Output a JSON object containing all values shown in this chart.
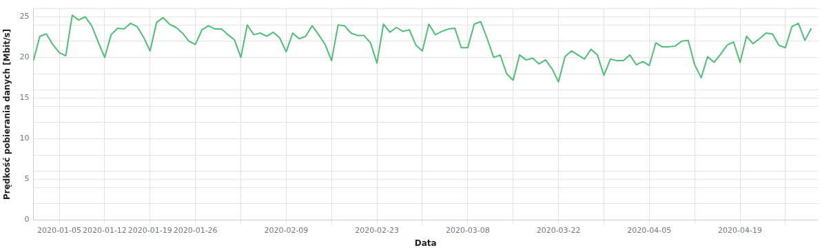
{
  "chart_data": {
    "type": "line",
    "xlabel": "Data",
    "ylabel": "Prędkość pobierania danych [Mbit/s]",
    "x": [
      "2020-01-01",
      "2020-01-02",
      "2020-01-03",
      "2020-01-04",
      "2020-01-05",
      "2020-01-06",
      "2020-01-07",
      "2020-01-08",
      "2020-01-09",
      "2020-01-10",
      "2020-01-11",
      "2020-01-12",
      "2020-01-13",
      "2020-01-14",
      "2020-01-15",
      "2020-01-16",
      "2020-01-17",
      "2020-01-18",
      "2020-01-19",
      "2020-01-20",
      "2020-01-21",
      "2020-01-22",
      "2020-01-23",
      "2020-01-24",
      "2020-01-25",
      "2020-01-26",
      "2020-01-27",
      "2020-01-28",
      "2020-01-29",
      "2020-01-30",
      "2020-01-31",
      "2020-02-01",
      "2020-02-02",
      "2020-02-03",
      "2020-02-04",
      "2020-02-05",
      "2020-02-06",
      "2020-02-07",
      "2020-02-08",
      "2020-02-09",
      "2020-02-10",
      "2020-02-11",
      "2020-02-12",
      "2020-02-13",
      "2020-02-14",
      "2020-02-15",
      "2020-02-16",
      "2020-02-17",
      "2020-02-18",
      "2020-02-19",
      "2020-02-20",
      "2020-02-21",
      "2020-02-22",
      "2020-02-23",
      "2020-02-24",
      "2020-02-25",
      "2020-02-26",
      "2020-02-27",
      "2020-02-28",
      "2020-02-29",
      "2020-03-01",
      "2020-03-02",
      "2020-03-03",
      "2020-03-04",
      "2020-03-05",
      "2020-03-06",
      "2020-03-07",
      "2020-03-08",
      "2020-03-09",
      "2020-03-10",
      "2020-03-11",
      "2020-03-12",
      "2020-03-13",
      "2020-03-14",
      "2020-03-15",
      "2020-03-16",
      "2020-03-17",
      "2020-03-18",
      "2020-03-19",
      "2020-03-20",
      "2020-03-21",
      "2020-03-22",
      "2020-03-23",
      "2020-03-24",
      "2020-03-25",
      "2020-03-26",
      "2020-03-27",
      "2020-03-28",
      "2020-03-29",
      "2020-03-30",
      "2020-03-31",
      "2020-04-01",
      "2020-04-02",
      "2020-04-03",
      "2020-04-04",
      "2020-04-05",
      "2020-04-06",
      "2020-04-07",
      "2020-04-08",
      "2020-04-09",
      "2020-04-10",
      "2020-04-11",
      "2020-04-12",
      "2020-04-13",
      "2020-04-14",
      "2020-04-15",
      "2020-04-16",
      "2020-04-17",
      "2020-04-18",
      "2020-04-19",
      "2020-04-20",
      "2020-04-21",
      "2020-04-22",
      "2020-04-23",
      "2020-04-24",
      "2020-04-25",
      "2020-04-26",
      "2020-04-27",
      "2020-04-28",
      "2020-04-29",
      "2020-04-30"
    ],
    "series": [
      {
        "color": "#4dbf74",
        "values": [
          19.6,
          22.6,
          22.9,
          21.6,
          20.6,
          20.2,
          25.2,
          24.6,
          25.0,
          23.9,
          21.9,
          20.0,
          22.8,
          23.6,
          23.5,
          24.2,
          23.8,
          22.5,
          20.8,
          24.3,
          24.9,
          24.1,
          23.7,
          23.0,
          22.0,
          21.6,
          23.4,
          23.9,
          23.5,
          23.5,
          22.8,
          22.2,
          20.0,
          24.0,
          22.8,
          23.0,
          22.6,
          23.1,
          22.4,
          20.7,
          23.0,
          22.3,
          22.6,
          23.9,
          22.8,
          21.6,
          19.6,
          24.0,
          23.9,
          23.0,
          22.7,
          22.7,
          21.8,
          19.3,
          24.1,
          23.1,
          23.7,
          23.2,
          23.4,
          21.5,
          20.8,
          24.1,
          22.8,
          23.2,
          23.5,
          23.6,
          21.2,
          21.2,
          24.1,
          24.4,
          22.3,
          20.0,
          20.3,
          18.0,
          17.2,
          20.3,
          19.7,
          19.9,
          19.2,
          19.7,
          18.6,
          17.0,
          20.1,
          20.8,
          20.3,
          19.8,
          21.0,
          20.3,
          17.8,
          19.8,
          19.6,
          19.6,
          20.3,
          19.1,
          19.5,
          19.0,
          21.8,
          21.3,
          21.3,
          21.4,
          22.0,
          22.1,
          19.1,
          17.5,
          20.1,
          19.4,
          20.4,
          21.5,
          21.9,
          19.4,
          22.6,
          21.7,
          22.3,
          23.0,
          22.9,
          21.5,
          21.2,
          23.8,
          24.2,
          22.1,
          23.6
        ]
      }
    ],
    "xlim": [
      "2020-01-01",
      "2020-05-01"
    ],
    "xticks": [
      "2020-01-05",
      "2020-01-12",
      "2020-01-19",
      "2020-01-26",
      {
        "value": "2020-02-02",
        "label": null
      },
      "2020-02-09",
      {
        "value": "2020-02-16",
        "label": null
      },
      "2020-02-23",
      {
        "value": "2020-03-01",
        "label": null
      },
      "2020-03-08",
      {
        "value": "2020-03-15",
        "label": null
      },
      "2020-03-22",
      {
        "value": "2020-03-29",
        "label": null
      },
      "2020-04-05",
      {
        "value": "2020-04-12",
        "label": null
      },
      "2020-04-19",
      {
        "value": "2020-04-26",
        "label": null
      }
    ],
    "ylim": [
      0,
      26
    ],
    "yticks": [
      0,
      {
        "value": 2,
        "label": null
      },
      {
        "value": 4,
        "label": null
      },
      5,
      {
        "value": 6,
        "label": null
      },
      {
        "value": 8,
        "label": null
      },
      10,
      {
        "value": 12,
        "label": null
      },
      {
        "value": 14,
        "label": null
      },
      15,
      {
        "value": 16,
        "label": null
      },
      {
        "value": 18,
        "label": null
      },
      20,
      {
        "value": 22,
        "label": null
      },
      {
        "value": 24,
        "label": null
      },
      25,
      {
        "value": 26,
        "label": null
      }
    ],
    "grid": true,
    "marker": "none",
    "line_style": "solid"
  }
}
